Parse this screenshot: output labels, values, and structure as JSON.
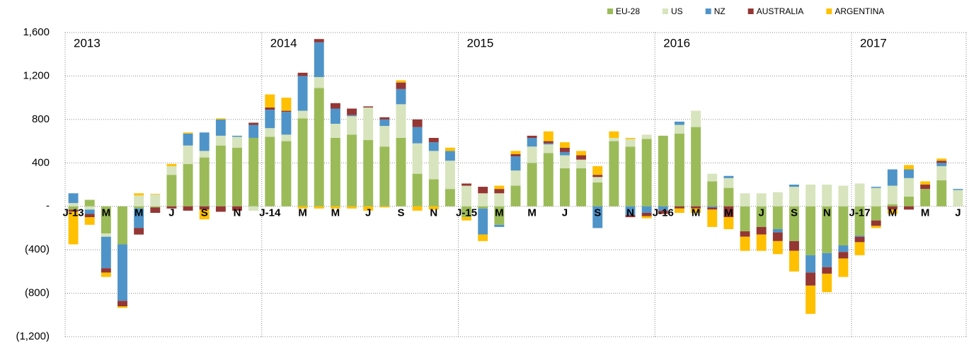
{
  "chart_data": {
    "type": "stacked_bar",
    "categories": [
      "J-13",
      null,
      "M",
      null,
      "M",
      null,
      "J",
      null,
      "S",
      null,
      "N",
      null,
      "J-14",
      null,
      "M",
      null,
      "M",
      null,
      "J",
      null,
      "S",
      null,
      "N",
      null,
      "J-15",
      null,
      "M",
      null,
      "M",
      null,
      "J",
      null,
      "S",
      null,
      "N",
      null,
      "J-16",
      null,
      "M",
      null,
      "M",
      null,
      "J",
      null,
      "S",
      null,
      "N",
      null,
      "J-17",
      null,
      "M",
      null,
      "M",
      null,
      "J"
    ],
    "series": [
      {
        "name": "EU-28",
        "color": "#9bbb59",
        "values": [
          -30,
          60,
          -250,
          -350,
          -20,
          -10,
          290,
          390,
          450,
          560,
          540,
          630,
          640,
          600,
          810,
          1090,
          630,
          660,
          610,
          550,
          630,
          300,
          250,
          160,
          -100,
          -20,
          -170,
          190,
          400,
          490,
          350,
          350,
          220,
          600,
          550,
          620,
          650,
          670,
          730,
          230,
          170,
          -230,
          -190,
          -210,
          -320,
          -450,
          -430,
          -360,
          -270,
          -130,
          20,
          90,
          160,
          240,
          0
        ]
      },
      {
        "name": "US",
        "color": "#d7e4bd",
        "values": [
          30,
          -30,
          -30,
          0,
          100,
          110,
          80,
          170,
          60,
          90,
          100,
          -40,
          80,
          60,
          70,
          100,
          130,
          170,
          300,
          190,
          310,
          280,
          260,
          260,
          190,
          120,
          120,
          140,
          150,
          80,
          120,
          80,
          50,
          30,
          70,
          40,
          0,
          80,
          150,
          70,
          90,
          120,
          120,
          130,
          180,
          200,
          200,
          190,
          210,
          170,
          170,
          170,
          0,
          130,
          150
        ]
      },
      {
        "name": "NZ",
        "color": "#4f94c8",
        "values": [
          90,
          -40,
          -290,
          -520,
          -180,
          0,
          0,
          110,
          170,
          150,
          10,
          120,
          170,
          210,
          320,
          320,
          140,
          10,
          0,
          60,
          140,
          150,
          80,
          90,
          0,
          -240,
          -20,
          130,
          80,
          10,
          30,
          0,
          -200,
          0,
          -80,
          -60,
          -40,
          30,
          0,
          -10,
          20,
          0,
          0,
          -30,
          20,
          -160,
          -130,
          -60,
          -10,
          10,
          150,
          80,
          0,
          30,
          10
        ]
      },
      {
        "name": "AUSTRALIA",
        "color": "#943634",
        "values": [
          -20,
          -30,
          -40,
          -50,
          -60,
          -50,
          -20,
          -40,
          -30,
          -50,
          -40,
          20,
          20,
          10,
          30,
          30,
          50,
          60,
          10,
          20,
          60,
          70,
          40,
          0,
          20,
          60,
          40,
          20,
          20,
          20,
          40,
          40,
          20,
          0,
          -20,
          -30,
          -30,
          -20,
          -20,
          -20,
          -100,
          -50,
          -70,
          -80,
          -90,
          -120,
          -60,
          -60,
          -50,
          -50,
          -30,
          -30,
          40,
          20,
          0
        ]
      },
      {
        "name": "ARGENTINA",
        "color": "#ffc000",
        "values": [
          -300,
          -70,
          -40,
          -15,
          20,
          5,
          20,
          10,
          -90,
          10,
          0,
          0,
          120,
          120,
          -20,
          -20,
          -20,
          -20,
          -40,
          -10,
          20,
          -40,
          -30,
          30,
          -30,
          -60,
          30,
          30,
          0,
          90,
          50,
          40,
          80,
          60,
          10,
          -20,
          0,
          -40,
          -40,
          -160,
          -110,
          -130,
          -150,
          -120,
          -190,
          -260,
          -170,
          -170,
          -120,
          -20,
          -40,
          40,
          30,
          20,
          0
        ]
      }
    ],
    "annotations": [
      "2013",
      "2014",
      "2015",
      "2016",
      "2017"
    ],
    "ylim": [
      -1200,
      1600
    ],
    "yticks": [
      {
        "value": -1200,
        "label": "(1,200)"
      },
      {
        "value": -800,
        "label": "(800)"
      },
      {
        "value": -400,
        "label": "(400)"
      },
      {
        "value": 0,
        "label": "-"
      },
      {
        "value": 400,
        "label": "400"
      },
      {
        "value": 800,
        "label": "800"
      },
      {
        "value": 1200,
        "label": "1,200"
      },
      {
        "value": 1600,
        "label": "1,600"
      }
    ],
    "grid": true,
    "legend": "top-right"
  }
}
